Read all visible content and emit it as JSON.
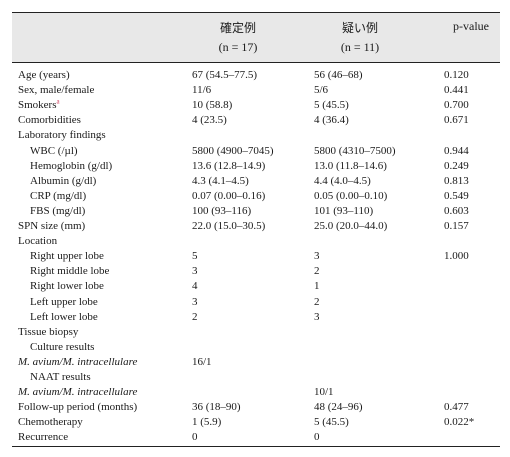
{
  "header": {
    "col1_title": "確定例",
    "col1_n": "(n = 17)",
    "col2_title": "疑い例",
    "col2_n": "(n = 11)",
    "col3_title": "p-value"
  },
  "rows": [
    {
      "label": "Age (years)",
      "v1": "67 (54.5–77.5)",
      "v2": "56 (46–68)",
      "p": "0.120"
    },
    {
      "label": "Sex, male/female",
      "v1": "11/6",
      "v2": "5/6",
      "p": "0.441"
    },
    {
      "label": "Smokers",
      "v1": "10 (58.8)",
      "v2": "5 (45.5)",
      "p": "0.700",
      "sup": "a"
    },
    {
      "label": "Comorbidities",
      "v1": "4 (23.5)",
      "v2": "4 (36.4)",
      "p": "0.671"
    },
    {
      "label": "Laboratory findings",
      "v1": "",
      "v2": "",
      "p": ""
    },
    {
      "label": "WBC (/µl)",
      "v1": "5800 (4900–7045)",
      "v2": "5800 (4310–7500)",
      "p": "0.944"
    },
    {
      "label": "Hemoglobin (g/dl)",
      "v1": "13.6 (12.8–14.9)",
      "v2": "13.0 (11.8–14.6)",
      "p": "0.249"
    },
    {
      "label": "Albumin (g/dl)",
      "v1": "4.3 (4.1–4.5)",
      "v2": "4.4 (4.0–4.5)",
      "p": "0.813"
    },
    {
      "label": "CRP (mg/dl)",
      "v1": "0.07 (0.00–0.16)",
      "v2": "0.05 (0.00–0.10)",
      "p": "0.549"
    },
    {
      "label": "FBS (mg/dl)",
      "v1": "100 (93–116)",
      "v2": "101 (93–110)",
      "p": "0.603"
    },
    {
      "label": "SPN size (mm)",
      "v1": "22.0 (15.0–30.5)",
      "v2": "25.0 (20.0–44.0)",
      "p": "0.157"
    },
    {
      "label": "Location",
      "v1": "",
      "v2": "",
      "p": ""
    },
    {
      "label": "Right upper lobe",
      "v1": "5",
      "v2": "3",
      "p": "1.000"
    },
    {
      "label": "Right middle lobe",
      "v1": "3",
      "v2": "2",
      "p": ""
    },
    {
      "label": "Right lower lobe",
      "v1": "4",
      "v2": "1",
      "p": ""
    },
    {
      "label": "Left upper lobe",
      "v1": "3",
      "v2": "2",
      "p": ""
    },
    {
      "label": "Left lower lobe",
      "v1": "2",
      "v2": "3",
      "p": ""
    },
    {
      "label": "Tissue biopsy",
      "v1": "",
      "v2": "",
      "p": ""
    },
    {
      "label": "Culture results",
      "v1": "",
      "v2": "",
      "p": ""
    },
    {
      "label": "M. avium/M. intracellulare",
      "v1": "16/1",
      "v2": "",
      "p": ""
    },
    {
      "label": "NAAT results",
      "v1": "",
      "v2": "",
      "p": ""
    },
    {
      "label": "M. avium/M. intracellulare",
      "v1": "",
      "v2": "10/1",
      "p": ""
    },
    {
      "label": "Follow-up period (months)",
      "v1": "36 (18–90)",
      "v2": "48 (24–96)",
      "p": "0.477"
    },
    {
      "label": "Chemotherapy",
      "v1": "1 (5.9)",
      "v2": "5 (45.5)",
      "p": "0.022*"
    },
    {
      "label": "Recurrence",
      "v1": "0",
      "v2": "0",
      "p": ""
    }
  ]
}
